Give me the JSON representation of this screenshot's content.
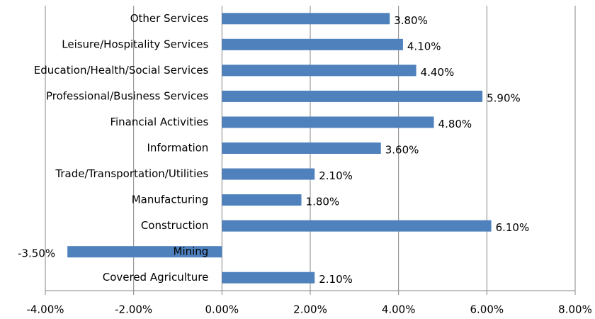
{
  "chart_data": {
    "type": "hbar",
    "categories": [
      "Other Services",
      "Leisure/Hospitality Services",
      "Education/Health/Social Services",
      "Professional/Business Services",
      "Financial Activities",
      "Information",
      "Trade/Transportation/Utilities",
      "Manufacturing",
      "Construction",
      "Mining",
      "Covered Agriculture"
    ],
    "values": [
      3.8,
      4.1,
      4.4,
      5.9,
      4.8,
      3.6,
      2.1,
      1.8,
      6.1,
      -3.5,
      2.1
    ],
    "value_labels": [
      "3.80%",
      "4.10%",
      "4.40%",
      "5.90%",
      "4.80%",
      "3.60%",
      "2.10%",
      "1.80%",
      "6.10%",
      "-3.50%",
      "2.10%"
    ],
    "color": "#4f81bd",
    "xlim": [
      -4,
      8
    ],
    "xticks": [
      {
        "value": -4,
        "label": "-4.00%"
      },
      {
        "value": -2,
        "label": "-2.00%"
      },
      {
        "value": 0,
        "label": "0.00%"
      },
      {
        "value": 2,
        "label": "2.00%"
      },
      {
        "value": 4,
        "label": "4.00%"
      },
      {
        "value": 6,
        "label": "6.00%"
      },
      {
        "value": 8,
        "label": "8.00%"
      }
    ],
    "grid": true
  }
}
